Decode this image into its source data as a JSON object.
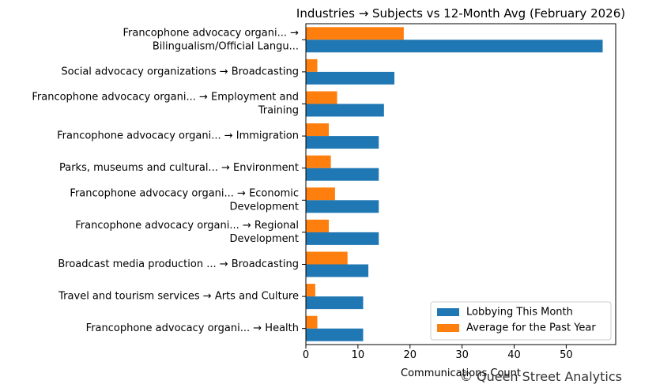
{
  "chart_data": {
    "type": "bar",
    "orientation": "horizontal",
    "title": "Industries → Subjects vs 12-Month Avg (February 2026)",
    "xlabel": "Communications Count",
    "ylabel": "",
    "xlim": [
      0,
      59.5
    ],
    "xticks": [
      0,
      10,
      20,
      30,
      40,
      50
    ],
    "categories": [
      [
        "Francophone advocacy organi... →",
        "Bilingualism/Official Langu..."
      ],
      [
        "Social advocacy organizations → Broadcasting"
      ],
      [
        "Francophone advocacy organi... → Employment and",
        "Training"
      ],
      [
        "Francophone advocacy organi... → Immigration"
      ],
      [
        "Parks, museums and cultural... → Environment"
      ],
      [
        "Francophone advocacy organi... → Economic",
        "Development"
      ],
      [
        "Francophone advocacy organi... → Regional",
        "Development"
      ],
      [
        "Broadcast media production ... → Broadcasting"
      ],
      [
        "Travel and tourism services → Arts and Culture"
      ],
      [
        "Francophone advocacy organi... → Health"
      ]
    ],
    "series": [
      {
        "name": "Lobbying This Month",
        "color": "#1f77b4",
        "values": [
          57,
          17,
          15,
          14,
          14,
          14,
          14,
          12,
          11,
          11
        ]
      },
      {
        "name": "Average for the Past Year",
        "color": "#ff7f0e",
        "values": [
          18.8,
          2.2,
          6.0,
          4.4,
          4.8,
          5.6,
          4.4,
          8.0,
          1.8,
          2.2
        ]
      }
    ],
    "legend": "lower-right",
    "grid": false
  },
  "watermark": "© Queen Street Analytics"
}
